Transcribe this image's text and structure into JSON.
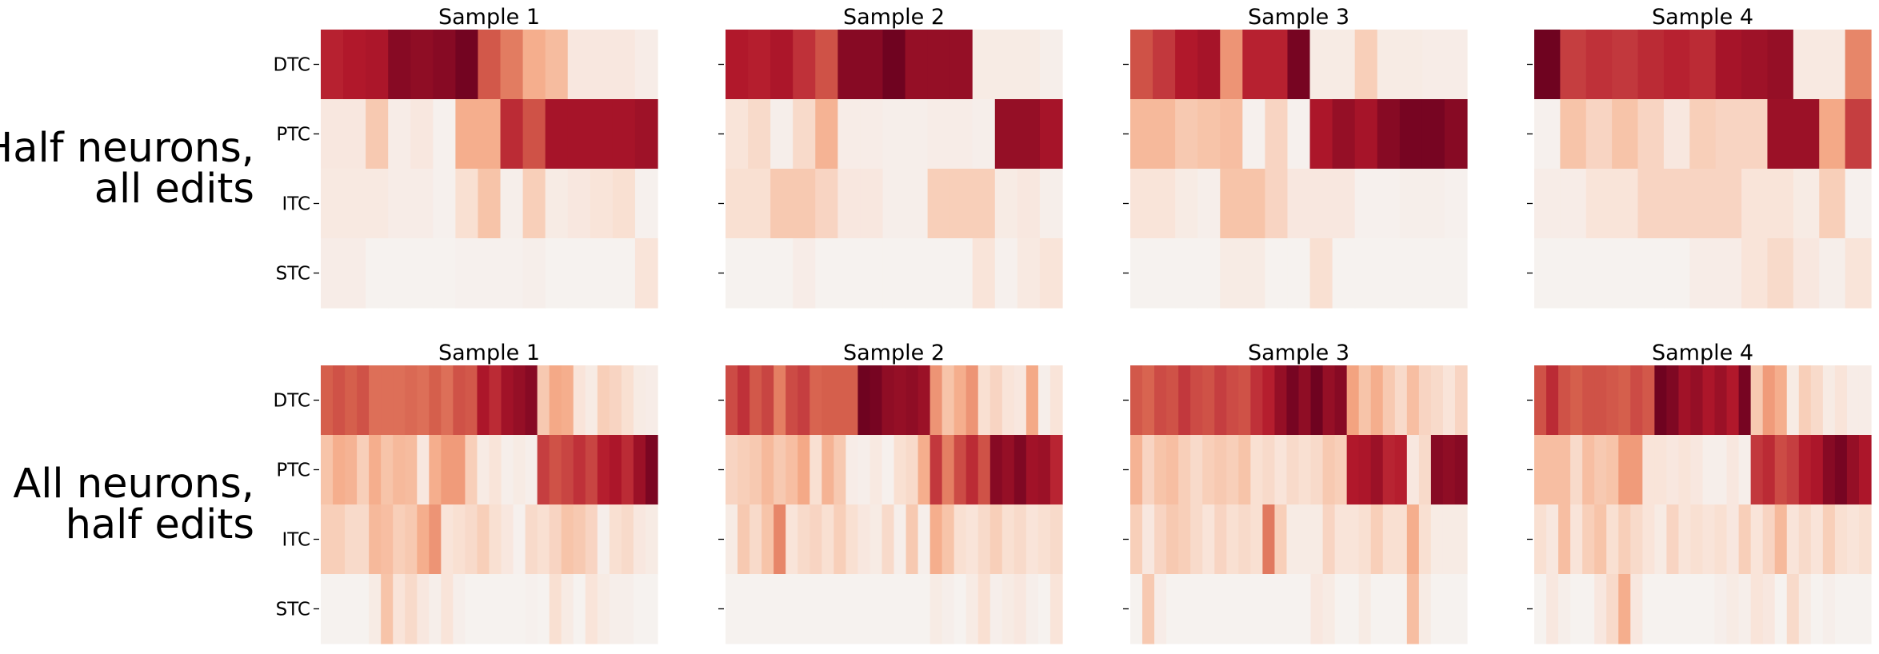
{
  "colors": {
    "scale": [
      "#f5f5f5",
      "#f9e2d6",
      "#f7c3a8",
      "#f4a582",
      "#e37d62",
      "#d6604d",
      "#c43c3f",
      "#b2182b",
      "#930e26",
      "#67001f"
    ],
    "background": "#ffffff"
  },
  "chart_data": [
    {
      "type": "heatmap",
      "row_title": [
        "Half neurons,",
        "all edits"
      ],
      "title": "Sample 1",
      "rows": [
        "DTC",
        "PTC",
        "ITC",
        "STC"
      ],
      "show_row_labels": true,
      "value_range": [
        0,
        1
      ],
      "values": [
        [
          0.75,
          0.78,
          0.8,
          0.92,
          0.9,
          0.92,
          0.97,
          0.58,
          0.45,
          0.3,
          0.25,
          0.08,
          0.08,
          0.08,
          0.05
        ],
        [
          0.08,
          0.08,
          0.2,
          0.05,
          0.08,
          0.03,
          0.3,
          0.3,
          0.72,
          0.6,
          0.82,
          0.82,
          0.82,
          0.82,
          0.85
        ],
        [
          0.07,
          0.07,
          0.07,
          0.05,
          0.05,
          0.03,
          0.12,
          0.22,
          0.04,
          0.18,
          0.06,
          0.08,
          0.1,
          0.12,
          0.03
        ],
        [
          0.05,
          0.05,
          0.02,
          0.02,
          0.02,
          0.02,
          0.03,
          0.03,
          0.03,
          0.04,
          0.02,
          0.02,
          0.02,
          0.02,
          0.1
        ]
      ]
    },
    {
      "type": "heatmap",
      "row_title": [],
      "title": "Sample 2",
      "rows": [
        "DTC",
        "PTC",
        "ITC",
        "STC"
      ],
      "show_row_labels": false,
      "value_range": [
        0,
        1
      ],
      "values": [
        [
          0.78,
          0.76,
          0.8,
          0.7,
          0.6,
          0.92,
          0.92,
          0.98,
          0.88,
          0.88,
          0.88,
          0.06,
          0.06,
          0.06,
          0.04
        ],
        [
          0.1,
          0.14,
          0.04,
          0.14,
          0.28,
          0.05,
          0.05,
          0.04,
          0.04,
          0.05,
          0.05,
          0.04,
          0.88,
          0.88,
          0.82
        ],
        [
          0.12,
          0.12,
          0.2,
          0.2,
          0.16,
          0.08,
          0.08,
          0.04,
          0.04,
          0.18,
          0.18,
          0.18,
          0.06,
          0.08,
          0.04
        ],
        [
          0.02,
          0.02,
          0.02,
          0.05,
          0.02,
          0.02,
          0.02,
          0.02,
          0.02,
          0.02,
          0.02,
          0.1,
          0.03,
          0.07,
          0.1
        ]
      ]
    },
    {
      "type": "heatmap",
      "row_title": [],
      "title": "Sample 3",
      "rows": [
        "DTC",
        "PTC",
        "ITC",
        "STC"
      ],
      "show_row_labels": false,
      "value_range": [
        0,
        1
      ],
      "values": [
        [
          0.6,
          0.68,
          0.78,
          0.82,
          0.38,
          0.75,
          0.75,
          0.96,
          0.06,
          0.06,
          0.18,
          0.06,
          0.06,
          0.05,
          0.05
        ],
        [
          0.26,
          0.26,
          0.2,
          0.22,
          0.24,
          0.03,
          0.16,
          0.03,
          0.8,
          0.88,
          0.82,
          0.92,
          0.96,
          0.96,
          0.92
        ],
        [
          0.1,
          0.1,
          0.06,
          0.04,
          0.22,
          0.22,
          0.16,
          0.08,
          0.08,
          0.08,
          0.03,
          0.03,
          0.04,
          0.04,
          0.03
        ],
        [
          0.02,
          0.02,
          0.02,
          0.02,
          0.06,
          0.06,
          0.02,
          0.02,
          0.12,
          0.02,
          0.02,
          0.02,
          0.02,
          0.02,
          0.02
        ]
      ]
    },
    {
      "type": "heatmap",
      "row_title": [],
      "title": "Sample 4",
      "rows": [
        "DTC",
        "PTC",
        "ITC",
        "STC"
      ],
      "show_row_labels": false,
      "value_range": [
        0,
        1
      ],
      "values": [
        [
          0.98,
          0.66,
          0.7,
          0.68,
          0.72,
          0.75,
          0.72,
          0.82,
          0.85,
          0.88,
          0.07,
          0.07,
          0.42
        ],
        [
          0.03,
          0.22,
          0.16,
          0.22,
          0.16,
          0.08,
          0.18,
          0.16,
          0.16,
          0.86,
          0.86,
          0.32,
          0.66
        ],
        [
          0.05,
          0.05,
          0.1,
          0.1,
          0.16,
          0.16,
          0.16,
          0.16,
          0.1,
          0.1,
          0.06,
          0.18,
          0.03
        ],
        [
          0.02,
          0.02,
          0.02,
          0.02,
          0.02,
          0.02,
          0.05,
          0.05,
          0.1,
          0.14,
          0.08,
          0.04,
          0.1
        ]
      ]
    },
    {
      "type": "heatmap",
      "row_title": [
        "All neurons,",
        "half edits"
      ],
      "title": "Sample 1",
      "rows": [
        "DTC",
        "PTC",
        "ITC",
        "STC"
      ],
      "show_row_labels": true,
      "value_range": [
        0,
        1
      ],
      "values": [
        [
          0.56,
          0.6,
          0.56,
          0.6,
          0.5,
          0.5,
          0.5,
          0.52,
          0.5,
          0.56,
          0.5,
          0.6,
          0.58,
          0.8,
          0.72,
          0.84,
          0.88,
          0.92,
          0.2,
          0.32,
          0.3,
          0.1,
          0.06,
          0.18,
          0.16,
          0.12,
          0.06,
          0.05
        ],
        [
          0.22,
          0.3,
          0.28,
          0.18,
          0.3,
          0.22,
          0.26,
          0.25,
          0.08,
          0.3,
          0.36,
          0.36,
          0.18,
          0.06,
          0.1,
          0.04,
          0.06,
          0.04,
          0.66,
          0.6,
          0.64,
          0.7,
          0.64,
          0.76,
          0.8,
          0.72,
          0.86,
          0.95
        ],
        [
          0.18,
          0.18,
          0.14,
          0.14,
          0.26,
          0.24,
          0.18,
          0.2,
          0.3,
          0.38,
          0.1,
          0.12,
          0.14,
          0.18,
          0.12,
          0.08,
          0.03,
          0.14,
          0.12,
          0.16,
          0.22,
          0.2,
          0.16,
          0.04,
          0.12,
          0.14,
          0.08,
          0.06
        ],
        [
          0.02,
          0.02,
          0.02,
          0.02,
          0.06,
          0.22,
          0.1,
          0.14,
          0.08,
          0.04,
          0.1,
          0.04,
          0.02,
          0.02,
          0.02,
          0.02,
          0.02,
          0.03,
          0.02,
          0.12,
          0.06,
          0.02,
          0.1,
          0.06,
          0.04,
          0.04,
          0.02,
          0.02
        ]
      ]
    },
    {
      "type": "heatmap",
      "row_title": [],
      "title": "Sample 2",
      "rows": [
        "DTC",
        "PTC",
        "ITC",
        "STC"
      ],
      "show_row_labels": false,
      "value_range": [
        0,
        1
      ],
      "values": [
        [
          0.62,
          0.7,
          0.58,
          0.64,
          0.44,
          0.62,
          0.66,
          0.54,
          0.56,
          0.56,
          0.56,
          0.98,
          0.96,
          0.9,
          0.88,
          0.9,
          0.86,
          0.38,
          0.22,
          0.3,
          0.38,
          0.12,
          0.16,
          0.1,
          0.08,
          0.32,
          0.04,
          0.1
        ],
        [
          0.16,
          0.18,
          0.2,
          0.26,
          0.2,
          0.24,
          0.32,
          0.12,
          0.28,
          0.2,
          0.05,
          0.04,
          0.07,
          0.03,
          0.12,
          0.14,
          0.3,
          0.68,
          0.44,
          0.62,
          0.72,
          0.6,
          0.92,
          0.88,
          0.94,
          0.84,
          0.86,
          0.74
        ],
        [
          0.06,
          0.2,
          0.14,
          0.22,
          0.42,
          0.1,
          0.14,
          0.16,
          0.12,
          0.18,
          0.12,
          0.08,
          0.06,
          0.14,
          0.04,
          0.2,
          0.04,
          0.3,
          0.22,
          0.12,
          0.1,
          0.14,
          0.18,
          0.12,
          0.14,
          0.1,
          0.12,
          0.14
        ],
        [
          0.02,
          0.02,
          0.02,
          0.02,
          0.02,
          0.02,
          0.02,
          0.02,
          0.02,
          0.02,
          0.02,
          0.02,
          0.02,
          0.02,
          0.02,
          0.02,
          0.02,
          0.06,
          0.04,
          0.02,
          0.06,
          0.12,
          0.04,
          0.06,
          0.08,
          0.04,
          0.02,
          0.1
        ]
      ]
    },
    {
      "type": "heatmap",
      "row_title": [],
      "title": "Sample 3",
      "rows": [
        "DTC",
        "PTC",
        "ITC",
        "STC"
      ],
      "show_row_labels": false,
      "value_range": [
        0,
        1
      ],
      "values": [
        [
          0.58,
          0.54,
          0.62,
          0.6,
          0.68,
          0.62,
          0.6,
          0.66,
          0.62,
          0.6,
          0.7,
          0.76,
          0.88,
          0.96,
          0.9,
          0.98,
          0.88,
          0.92,
          0.34,
          0.22,
          0.3,
          0.2,
          0.14,
          0.24,
          0.16,
          0.14,
          0.1,
          0.16
        ],
        [
          0.28,
          0.16,
          0.22,
          0.24,
          0.18,
          0.14,
          0.18,
          0.2,
          0.18,
          0.22,
          0.12,
          0.14,
          0.1,
          0.14,
          0.12,
          0.14,
          0.2,
          0.18,
          0.78,
          0.8,
          0.86,
          0.74,
          0.76,
          0.08,
          0.14,
          0.92,
          0.9,
          0.92
        ],
        [
          0.18,
          0.08,
          0.16,
          0.2,
          0.18,
          0.14,
          0.1,
          0.16,
          0.12,
          0.14,
          0.12,
          0.46,
          0.18,
          0.06,
          0.06,
          0.06,
          0.16,
          0.1,
          0.1,
          0.12,
          0.18,
          0.12,
          0.12,
          0.3,
          0.12,
          0.06,
          0.06,
          0.06
        ],
        [
          0.02,
          0.2,
          0.05,
          0.02,
          0.02,
          0.02,
          0.02,
          0.02,
          0.02,
          0.02,
          0.02,
          0.02,
          0.02,
          0.02,
          0.02,
          0.08,
          0.06,
          0.02,
          0.02,
          0.06,
          0.02,
          0.02,
          0.02,
          0.24,
          0.06,
          0.02,
          0.02,
          0.02
        ]
      ]
    },
    {
      "type": "heatmap",
      "row_title": [],
      "title": "Sample 4",
      "rows": [
        "DTC",
        "PTC",
        "ITC",
        "STC"
      ],
      "show_row_labels": false,
      "value_range": [
        0,
        1
      ],
      "values": [
        [
          0.6,
          0.72,
          0.6,
          0.56,
          0.6,
          0.6,
          0.58,
          0.56,
          0.62,
          0.58,
          0.98,
          0.94,
          0.84,
          0.88,
          0.8,
          0.86,
          0.78,
          0.96,
          0.2,
          0.36,
          0.3,
          0.06,
          0.18,
          0.14,
          0.06,
          0.1,
          0.05,
          0.05
        ],
        [
          0.24,
          0.24,
          0.24,
          0.14,
          0.24,
          0.2,
          0.22,
          0.36,
          0.36,
          0.1,
          0.1,
          0.08,
          0.1,
          0.08,
          0.04,
          0.04,
          0.08,
          0.04,
          0.68,
          0.72,
          0.62,
          0.66,
          0.76,
          0.8,
          0.92,
          0.96,
          0.88,
          0.8
        ],
        [
          0.12,
          0.08,
          0.24,
          0.1,
          0.18,
          0.22,
          0.12,
          0.18,
          0.14,
          0.1,
          0.06,
          0.16,
          0.1,
          0.12,
          0.1,
          0.12,
          0.08,
          0.18,
          0.1,
          0.16,
          0.26,
          0.1,
          0.14,
          0.1,
          0.18,
          0.12,
          0.1,
          0.12
        ],
        [
          0.02,
          0.08,
          0.04,
          0.02,
          0.02,
          0.08,
          0.14,
          0.3,
          0.08,
          0.02,
          0.02,
          0.02,
          0.02,
          0.02,
          0.02,
          0.04,
          0.06,
          0.04,
          0.1,
          0.08,
          0.02,
          0.14,
          0.06,
          0.02,
          0.04,
          0.02,
          0.02,
          0.02
        ]
      ]
    }
  ]
}
